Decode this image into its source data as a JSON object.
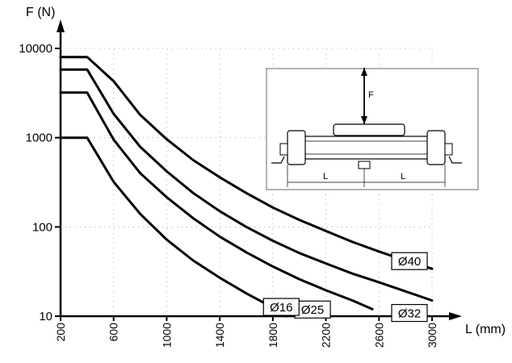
{
  "chart_data": {
    "type": "line",
    "title": "",
    "xlabel": "L (mm)",
    "ylabel": "F (N)",
    "xlim": [
      200,
      3000
    ],
    "ylim": [
      10,
      10000
    ],
    "y_scale": "log",
    "grid": true,
    "x_ticks": [
      200,
      600,
      1000,
      1400,
      1800,
      2200,
      2600,
      3000
    ],
    "x_tick_labels": [
      "200",
      "600",
      "1000",
      "1400",
      "1800",
      "2200",
      "2600",
      "3000"
    ],
    "y_ticks": [
      10,
      100,
      1000,
      10000
    ],
    "y_tick_labels": [
      "10",
      "100",
      "1000",
      "10000"
    ],
    "series": [
      {
        "name": "Ø40",
        "x": [
          200,
          400,
          600,
          800,
          1000,
          1200,
          1400,
          1600,
          1800,
          2000,
          2200,
          2400,
          2600,
          2800,
          3000
        ],
        "y": [
          8000,
          8000,
          4300,
          1800,
          960,
          560,
          360,
          240,
          165,
          120,
          90,
          68,
          53,
          42,
          34
        ]
      },
      {
        "name": "Ø32",
        "x": [
          200,
          400,
          600,
          800,
          1000,
          1200,
          1400,
          1600,
          1800,
          2000,
          2200,
          2400,
          2600,
          2800,
          3000
        ],
        "y": [
          5800,
          5800,
          1850,
          790,
          420,
          240,
          150,
          100,
          70,
          51,
          39,
          30,
          24,
          19,
          15
        ]
      },
      {
        "name": "Ø25",
        "x": [
          200,
          400,
          600,
          800,
          1000,
          1200,
          1400,
          1600,
          1800,
          2000,
          2200,
          2400,
          2550
        ],
        "y": [
          3200,
          3200,
          950,
          400,
          215,
          125,
          78,
          52,
          36,
          26,
          19.5,
          15,
          12
        ]
      },
      {
        "name": "Ø16",
        "x": [
          200,
          400,
          600,
          800,
          1000,
          1200,
          1400,
          1600,
          1800,
          1900
        ],
        "y": [
          1000,
          1000,
          320,
          140,
          72,
          42,
          27,
          18,
          12.5,
          10
        ]
      }
    ],
    "inset": {
      "force_label": "F",
      "span_labels": [
        "L",
        "L"
      ]
    }
  }
}
